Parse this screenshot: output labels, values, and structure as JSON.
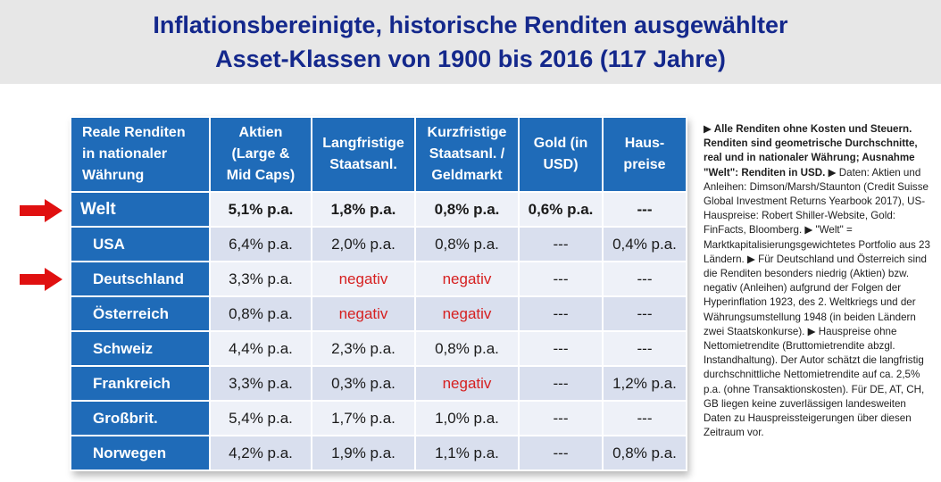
{
  "title": {
    "line1": "Inflationsbereinigte, historische Renditen ausgewählter",
    "line2": "Asset-Klassen von 1900 bis 2016 (117 Jahre)"
  },
  "colors": {
    "title_blue": "#14288c",
    "header_blue": "#1f6bb8",
    "negative_red": "#d62020",
    "arrow_red": "#e01010"
  },
  "table": {
    "headers": [
      [
        "Reale Renditen",
        "in nationaler",
        "Währung"
      ],
      [
        "Aktien",
        "(Large &",
        "Mid Caps)"
      ],
      [
        "Langfristige",
        "Staatsanl."
      ],
      [
        "Kurzfristige",
        "Staatsanl. /",
        "Geldmarkt"
      ],
      [
        "Gold (in",
        "USD)"
      ],
      [
        "Haus-",
        "preise"
      ]
    ],
    "rows": [
      {
        "label": "Welt",
        "aktien": "5,1% p.a.",
        "lang": "1,8% p.a.",
        "kurz": "0,8% p.a.",
        "gold": "0,6% p.a.",
        "haus": "---"
      },
      {
        "label": "USA",
        "aktien": "6,4% p.a.",
        "lang": "2,0% p.a.",
        "kurz": "0,8% p.a.",
        "gold": "---",
        "haus": "0,4% p.a."
      },
      {
        "label": "Deutschland",
        "aktien": "3,3% p.a.",
        "lang": "negativ",
        "kurz": "negativ",
        "gold": "---",
        "haus": "---"
      },
      {
        "label": "Österreich",
        "aktien": "0,8% p.a.",
        "lang": "negativ",
        "kurz": "negativ",
        "gold": "---",
        "haus": "---"
      },
      {
        "label": "Schweiz",
        "aktien": "4,4% p.a.",
        "lang": "2,3% p.a.",
        "kurz": "0,8% p.a.",
        "gold": "---",
        "haus": "---"
      },
      {
        "label": "Frankreich",
        "aktien": "3,3% p.a.",
        "lang": "0,3% p.a.",
        "kurz": "negativ",
        "gold": "---",
        "haus": "1,2% p.a."
      },
      {
        "label": "Großbrit.",
        "aktien": "5,4% p.a.",
        "lang": "1,7% p.a.",
        "kurz": "1,0% p.a.",
        "gold": "---",
        "haus": "---"
      },
      {
        "label": "Norwegen",
        "aktien": "4,2% p.a.",
        "lang": "1,9% p.a.",
        "kurz": "1,1% p.a.",
        "gold": "---",
        "haus": "0,8% p.a."
      }
    ]
  },
  "arrows": {
    "icon": "red-right-arrow-icon",
    "highlighted_rows": [
      "Welt",
      "Deutschland"
    ]
  },
  "notes": {
    "bold": "▶ Alle Renditen ohne Kosten und Steuern. Renditen sind geometrische Durchschnitte, real und in nationaler Währung; Ausnahme \"Welt\": Renditen in USD.",
    "body": " ▶ Daten: Aktien und Anleihen: Dimson/Marsh/Staunton (Credit Suisse Global Investment Returns Yearbook 2017), US-Hauspreise: Robert Shiller-Website, Gold: FinFacts, Bloomberg. ▶ \"Welt\" = Marktkapitalisierungsgewichtetes Portfolio aus 23 Ländern. ▶ Für Deutschland und Österreich sind die Renditen besonders niedrig (Aktien) bzw. negativ (Anleihen) aufgrund der Folgen der Hyperinflation 1923, des 2. Weltkriegs und der Währungsumstellung 1948 (in beiden Ländern zwei Staatskonkurse). ▶ Hauspreise ohne Nettomietrendite (Bruttomietrendite abzgl. Instandhaltung). Der Autor schätzt die langfristig durchschnittliche Nettomietrendite auf ca. 2,5% p.a. (ohne Transaktionskosten). Für DE, AT, CH, GB liegen keine zuverlässigen landesweiten Daten zu Hauspreissteigerungen über diesen Zeitraum vor."
  }
}
